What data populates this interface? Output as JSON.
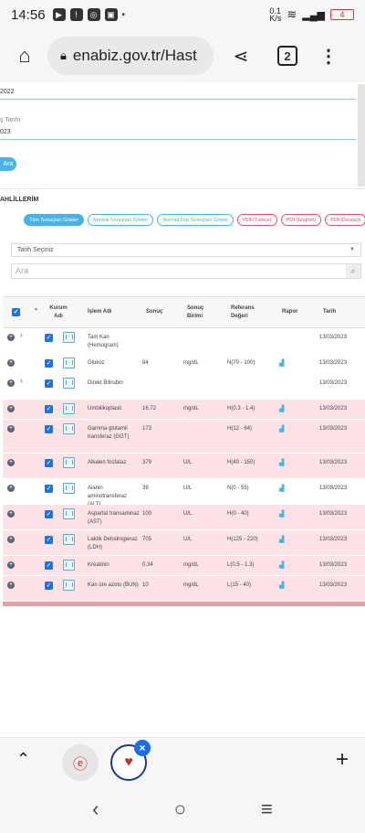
{
  "status": {
    "time": "14:56",
    "net_speed": "0.1\nK/s",
    "battery": "4"
  },
  "browser": {
    "url": "enabiz.gov.tr/Hast",
    "tab_count": "2"
  },
  "form": {
    "date1_value": "2022",
    "date2_label": "ş Tarihi",
    "date2_value": "023",
    "search_button": "Ara"
  },
  "section": {
    "title": "AHLİLLERİM"
  },
  "filters": [
    {
      "label": "Tüm Sonuçları Göster",
      "style": "active"
    },
    {
      "label": "Normal Sonuçları Göster",
      "style": "outline"
    },
    {
      "label": "Normal Dışı Sonuçları Göster",
      "style": "outline"
    },
    {
      "label": "PDF(Türkçe)",
      "style": "red"
    },
    {
      "label": "PDF(English)",
      "style": "red"
    },
    {
      "label": "PDF(Deutsch",
      "style": "red"
    }
  ],
  "date_select": {
    "placeholder": "Tarih Seçiniz"
  },
  "search": {
    "placeholder": "Ara"
  },
  "table": {
    "headers": {
      "kurum": "Kurum Adı",
      "islem": "İşlem Adı",
      "sonuc": "Sonuç",
      "birim": "Sonuç Birimi",
      "referans": "Referans Değeri",
      "rapor": "Rapor",
      "tarih": "Tarih"
    },
    "rows": [
      {
        "name": "Tam Kan (Hemogram)",
        "result": "",
        "unit": "",
        "ref": "",
        "date": "13/03/2023",
        "expand": true,
        "abnormal": false,
        "report": false
      },
      {
        "name": "Glukoz",
        "result": "84",
        "unit": "mg/dL",
        "ref": "N(70 - 100)",
        "date": "13/03/2023",
        "expand": false,
        "abnormal": false,
        "report": true
      },
      {
        "name": "Direkt Bilirubin",
        "result": "",
        "unit": "",
        "ref": "",
        "date": "13/03/2023",
        "expand": true,
        "abnormal": false,
        "report": false
      },
      {
        "name": "Umbilikoplasti",
        "result": "16.72",
        "unit": "mg/dL",
        "ref": "H(0.3 - 1.4)",
        "date": "13/03/2023",
        "expand": false,
        "abnormal": true,
        "report": true
      },
      {
        "name": "Gamma glutamil transferaz (GGT)",
        "result": "173",
        "unit": "",
        "ref": "H(12 - 64)",
        "date": "13/03/2023",
        "expand": false,
        "abnormal": true,
        "report": true
      },
      {
        "name": "Alkalen fosfataz",
        "result": "379",
        "unit": "U/L",
        "ref": "H(40 - 150)",
        "date": "13/03/2023",
        "expand": false,
        "abnormal": true,
        "report": true
      },
      {
        "name": "Alanin aminotransferaz (ALT)",
        "result": "39",
        "unit": "U/L",
        "ref": "N(0 - 55)",
        "date": "13/03/2023",
        "expand": false,
        "abnormal": false,
        "report": true
      },
      {
        "name": "Aspartat transaminaz (AST)",
        "result": "100",
        "unit": "U/L",
        "ref": "H(0 - 40)",
        "date": "13/03/2023",
        "expand": false,
        "abnormal": true,
        "report": true
      },
      {
        "name": "Laktik Dehidrogenaz (LDH)",
        "result": "705",
        "unit": "U/L",
        "ref": "H(125 - 220)",
        "date": "13/03/2023",
        "expand": false,
        "abnormal": true,
        "report": true
      },
      {
        "name": "Kreatinin",
        "result": "0.34",
        "unit": "mg/dL",
        "ref": "L(0.5 - 1.3)",
        "date": "13/03/2023",
        "expand": false,
        "abnormal": true,
        "report": true
      },
      {
        "name": "Kan üre azotu (BUN)",
        "result": "10",
        "unit": "mg/dL",
        "ref": "L(15 - 40)",
        "date": "13/03/2023",
        "expand": false,
        "abnormal": true,
        "report": true
      }
    ]
  }
}
